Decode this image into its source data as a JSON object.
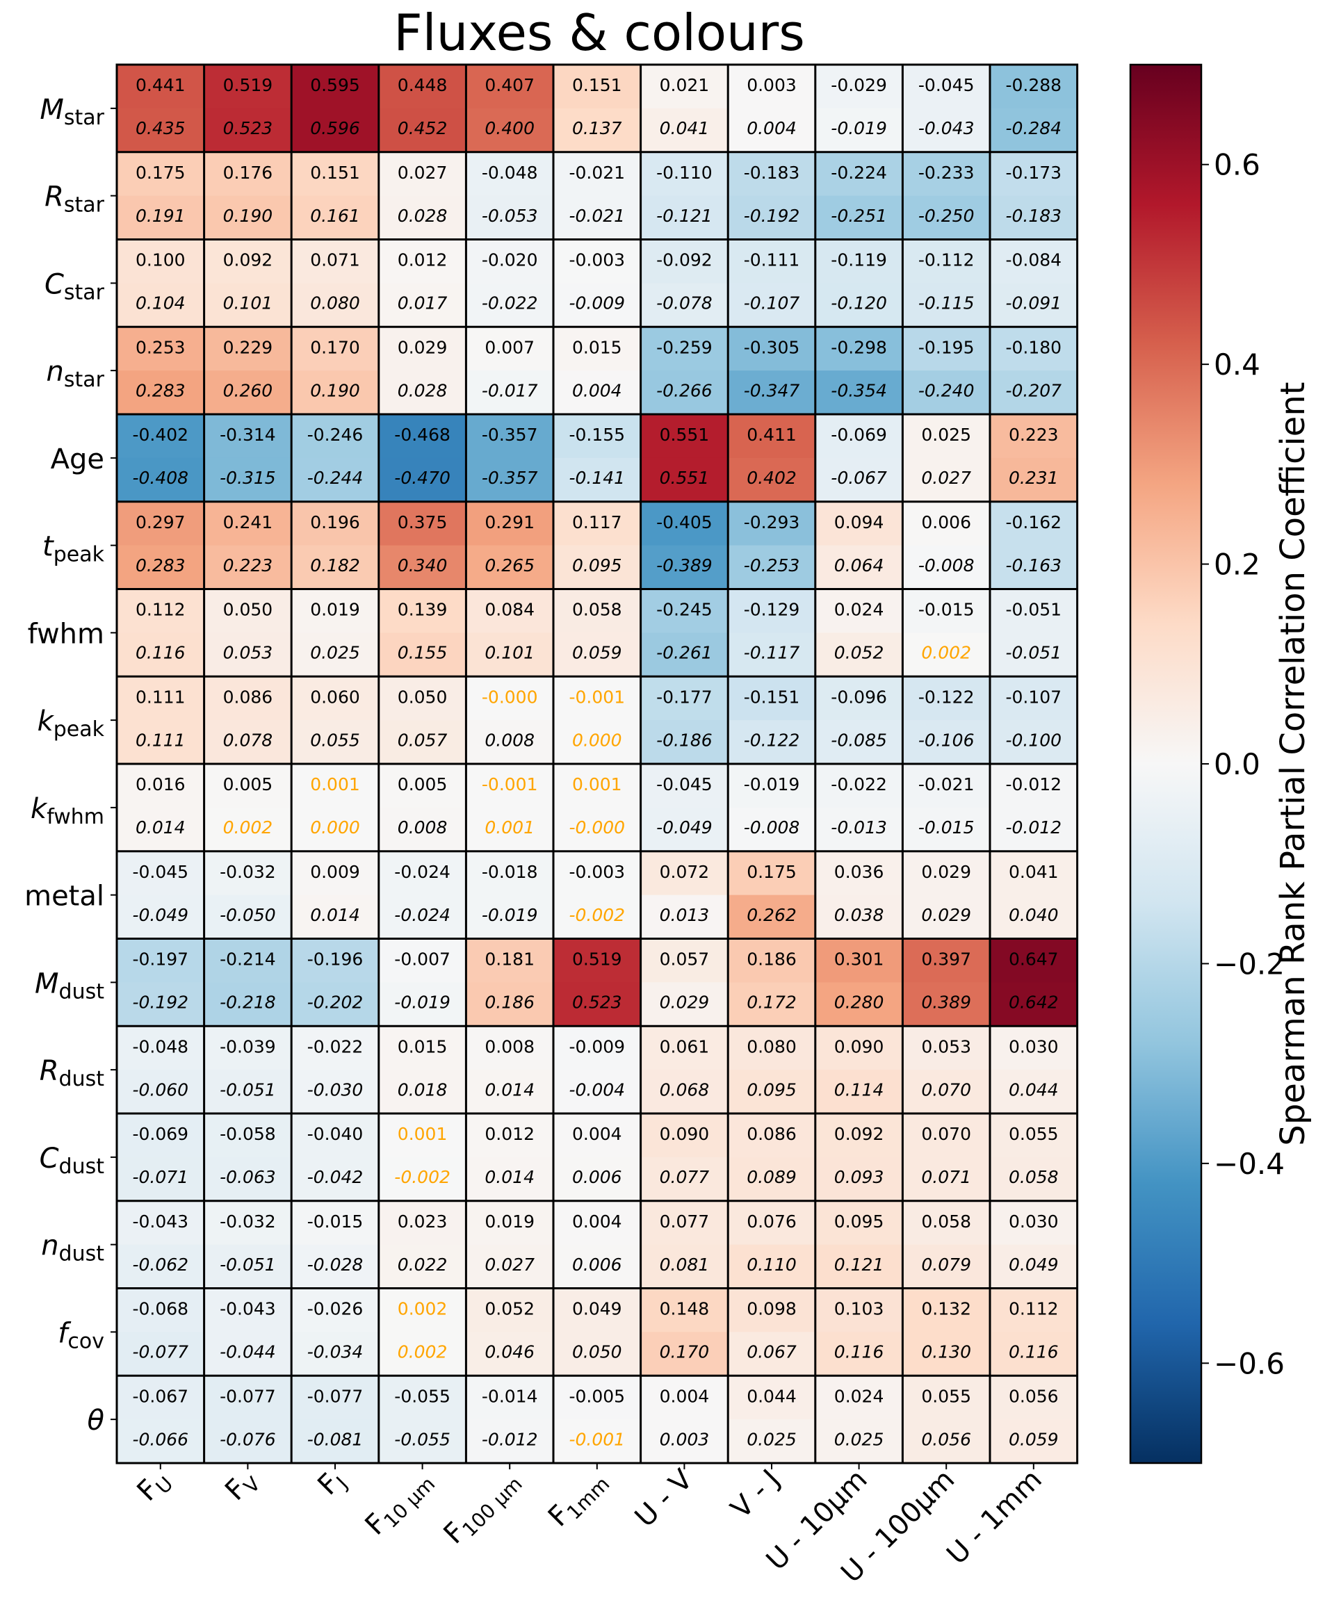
{
  "chart_data": {
    "type": "heatmap",
    "title": "Fluxes & colours",
    "columns": [
      {
        "main": "F",
        "sub": "U"
      },
      {
        "main": "F",
        "sub": "V"
      },
      {
        "main": "F",
        "sub": "J"
      },
      {
        "main": "F",
        "sub": "10 µm"
      },
      {
        "main": "F",
        "sub": "100 µm"
      },
      {
        "main": "F",
        "sub": "1mm"
      },
      {
        "main": "U - V",
        "sub": ""
      },
      {
        "main": "V - J",
        "sub": ""
      },
      {
        "main": "U - 10µm",
        "sub": ""
      },
      {
        "main": "U - 100µm",
        "sub": ""
      },
      {
        "main": "U - 1mm",
        "sub": ""
      }
    ],
    "rows": [
      {
        "main": "M",
        "sub": "star",
        "italic": true
      },
      {
        "main": "R",
        "sub": "star",
        "italic": true
      },
      {
        "main": "C",
        "sub": "star",
        "italic": true
      },
      {
        "main": "n",
        "sub": "star",
        "italic": true
      },
      {
        "main": "Age",
        "sub": "",
        "italic": false
      },
      {
        "main": "t",
        "sub": "peak",
        "italic": true
      },
      {
        "main": "fwhm",
        "sub": "",
        "italic": false
      },
      {
        "main": "k",
        "sub": "peak",
        "italic": true
      },
      {
        "main": "k",
        "sub": "fwhm",
        "italic": true
      },
      {
        "main": "metal",
        "sub": "",
        "italic": false
      },
      {
        "main": "M",
        "sub": "dust",
        "italic": true
      },
      {
        "main": "R",
        "sub": "dust",
        "italic": true
      },
      {
        "main": "C",
        "sub": "dust",
        "italic": true
      },
      {
        "main": "n",
        "sub": "dust",
        "italic": true
      },
      {
        "main": "f",
        "sub": "cov",
        "italic": true
      },
      {
        "main": "θ",
        "sub": "",
        "italic": true
      }
    ],
    "values_top": [
      [
        "0.441",
        "0.519",
        "0.595",
        "0.448",
        "0.407",
        "0.151",
        "0.021",
        "0.003",
        "-0.029",
        "-0.045",
        "-0.288"
      ],
      [
        "0.175",
        "0.176",
        "0.151",
        "0.027",
        "-0.048",
        "-0.021",
        "-0.110",
        "-0.183",
        "-0.224",
        "-0.233",
        "-0.173"
      ],
      [
        "0.100",
        "0.092",
        "0.071",
        "0.012",
        "-0.020",
        "-0.003",
        "-0.092",
        "-0.111",
        "-0.119",
        "-0.112",
        "-0.084"
      ],
      [
        "0.253",
        "0.229",
        "0.170",
        "0.029",
        "0.007",
        "0.015",
        "-0.259",
        "-0.305",
        "-0.298",
        "-0.195",
        "-0.180"
      ],
      [
        "-0.402",
        "-0.314",
        "-0.246",
        "-0.468",
        "-0.357",
        "-0.155",
        "0.551",
        "0.411",
        "-0.069",
        "0.025",
        "0.223"
      ],
      [
        "0.297",
        "0.241",
        "0.196",
        "0.375",
        "0.291",
        "0.117",
        "-0.405",
        "-0.293",
        "0.094",
        "0.006",
        "-0.162"
      ],
      [
        "0.112",
        "0.050",
        "0.019",
        "0.139",
        "0.084",
        "0.058",
        "-0.245",
        "-0.129",
        "0.024",
        "-0.015",
        "-0.051"
      ],
      [
        "0.111",
        "0.086",
        "0.060",
        "0.050",
        "-0.000",
        "-0.001",
        "-0.177",
        "-0.151",
        "-0.096",
        "-0.122",
        "-0.107"
      ],
      [
        "0.016",
        "0.005",
        "0.001",
        "0.005",
        "-0.001",
        "0.001",
        "-0.045",
        "-0.019",
        "-0.022",
        "-0.021",
        "-0.012"
      ],
      [
        "-0.045",
        "-0.032",
        "0.009",
        "-0.024",
        "-0.018",
        "-0.003",
        "0.072",
        "0.175",
        "0.036",
        "0.029",
        "0.041"
      ],
      [
        "-0.197",
        "-0.214",
        "-0.196",
        "-0.007",
        "0.181",
        "0.519",
        "0.057",
        "0.186",
        "0.301",
        "0.397",
        "0.647"
      ],
      [
        "-0.048",
        "-0.039",
        "-0.022",
        "0.015",
        "0.008",
        "-0.009",
        "0.061",
        "0.080",
        "0.090",
        "0.053",
        "0.030"
      ],
      [
        "-0.069",
        "-0.058",
        "-0.040",
        "0.001",
        "0.012",
        "0.004",
        "0.090",
        "0.086",
        "0.092",
        "0.070",
        "0.055"
      ],
      [
        "-0.043",
        "-0.032",
        "-0.015",
        "0.023",
        "0.019",
        "0.004",
        "0.077",
        "0.076",
        "0.095",
        "0.058",
        "0.030"
      ],
      [
        "-0.068",
        "-0.043",
        "-0.026",
        "0.002",
        "0.052",
        "0.049",
        "0.148",
        "0.098",
        "0.103",
        "0.132",
        "0.112"
      ],
      [
        "-0.067",
        "-0.077",
        "-0.077",
        "-0.055",
        "-0.014",
        "-0.005",
        "0.004",
        "0.044",
        "0.024",
        "0.055",
        "0.056"
      ]
    ],
    "values_bottom": [
      [
        "0.435",
        "0.523",
        "0.596",
        "0.452",
        "0.400",
        "0.137",
        "0.041",
        "0.004",
        "-0.019",
        "-0.043",
        "-0.284"
      ],
      [
        "0.191",
        "0.190",
        "0.161",
        "0.028",
        "-0.053",
        "-0.021",
        "-0.121",
        "-0.192",
        "-0.251",
        "-0.250",
        "-0.183"
      ],
      [
        "0.104",
        "0.101",
        "0.080",
        "0.017",
        "-0.022",
        "-0.009",
        "-0.078",
        "-0.107",
        "-0.120",
        "-0.115",
        "-0.091"
      ],
      [
        "0.283",
        "0.260",
        "0.190",
        "0.028",
        "-0.017",
        "0.004",
        "-0.266",
        "-0.347",
        "-0.354",
        "-0.240",
        "-0.207"
      ],
      [
        "-0.408",
        "-0.315",
        "-0.244",
        "-0.470",
        "-0.357",
        "-0.141",
        "0.551",
        "0.402",
        "-0.067",
        "0.027",
        "0.231"
      ],
      [
        "0.283",
        "0.223",
        "0.182",
        "0.340",
        "0.265",
        "0.095",
        "-0.389",
        "-0.253",
        "0.064",
        "-0.008",
        "-0.163"
      ],
      [
        "0.116",
        "0.053",
        "0.025",
        "0.155",
        "0.101",
        "0.059",
        "-0.261",
        "-0.117",
        "0.052",
        "0.002",
        "-0.051"
      ],
      [
        "0.111",
        "0.078",
        "0.055",
        "0.057",
        "0.008",
        "0.000",
        "-0.186",
        "-0.122",
        "-0.085",
        "-0.106",
        "-0.100"
      ],
      [
        "0.014",
        "0.002",
        "0.000",
        "0.008",
        "0.001",
        "-0.000",
        "-0.049",
        "-0.008",
        "-0.013",
        "-0.015",
        "-0.012"
      ],
      [
        "-0.049",
        "-0.050",
        "0.014",
        "-0.024",
        "-0.019",
        "-0.002",
        "0.013",
        "0.262",
        "0.038",
        "0.029",
        "0.040"
      ],
      [
        "-0.192",
        "-0.218",
        "-0.202",
        "-0.019",
        "0.186",
        "0.523",
        "0.029",
        "0.172",
        "0.280",
        "0.389",
        "0.642"
      ],
      [
        "-0.060",
        "-0.051",
        "-0.030",
        "0.018",
        "0.014",
        "-0.004",
        "0.068",
        "0.095",
        "0.114",
        "0.070",
        "0.044"
      ],
      [
        "-0.071",
        "-0.063",
        "-0.042",
        "-0.002",
        "0.014",
        "0.006",
        "0.077",
        "0.089",
        "0.093",
        "0.071",
        "0.058"
      ],
      [
        "-0.062",
        "-0.051",
        "-0.028",
        "0.022",
        "0.027",
        "0.006",
        "0.081",
        "0.110",
        "0.121",
        "0.079",
        "0.049"
      ],
      [
        "-0.077",
        "-0.044",
        "-0.034",
        "0.002",
        "0.046",
        "0.050",
        "0.170",
        "0.067",
        "0.116",
        "0.130",
        "0.116"
      ],
      [
        "-0.066",
        "-0.076",
        "-0.081",
        "-0.055",
        "-0.012",
        "-0.001",
        "0.003",
        "0.025",
        "0.025",
        "0.056",
        "0.059"
      ]
    ],
    "colorbar": {
      "label": "Spearman Rank Partial Correlation Coefficient",
      "vmin": -0.7,
      "vmax": 0.7,
      "ticks": [
        "0.6",
        "0.4",
        "0.2",
        "0.0",
        "−0.2",
        "−0.4",
        "−0.6"
      ],
      "tick_values": [
        0.6,
        0.4,
        0.2,
        0.0,
        -0.2,
        -0.4,
        -0.6
      ],
      "colormap": "RdBu_r"
    },
    "highlight_threshold": 0.0025,
    "highlight_color": "#ffa500",
    "text_color": "#000000"
  }
}
